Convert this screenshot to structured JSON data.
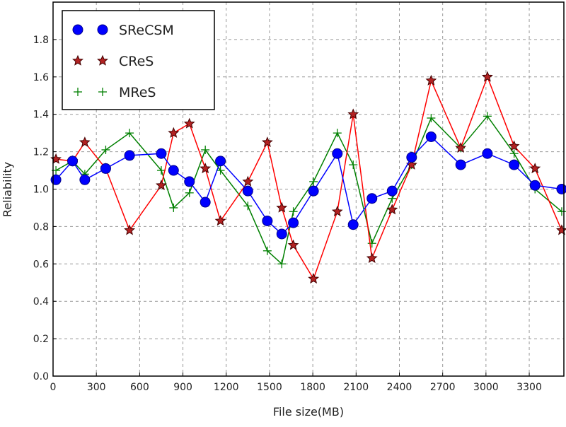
{
  "chart_data": {
    "type": "line",
    "title": "",
    "xlabel": "File size(MB)",
    "ylabel": "Reliability",
    "xlim": [
      0,
      3540
    ],
    "ylim": [
      0,
      2.0
    ],
    "xticks": [
      0,
      300,
      600,
      900,
      1200,
      1500,
      1800,
      2100,
      2400,
      2700,
      3000,
      3300
    ],
    "xtick_labels": [
      "0",
      "300",
      "600",
      "900",
      "1200",
      "1500",
      "1800",
      "2100",
      "2400",
      "2700",
      "3000",
      "3300"
    ],
    "yticks": [
      0,
      0.2,
      0.4,
      0.6,
      0.8,
      1.0,
      1.2,
      1.4,
      1.6,
      1.8
    ],
    "ytick_labels": [
      "0.0",
      "0.2",
      "0.4",
      "0.6",
      "0.8",
      "1.0",
      "1.2",
      "1.4",
      "1.6",
      "1.8"
    ],
    "grid": true,
    "legend_position": "top-left",
    "x": [
      20,
      135,
      220,
      365,
      530,
      750,
      835,
      945,
      1055,
      1160,
      1350,
      1485,
      1585,
      1665,
      1805,
      1970,
      2080,
      2210,
      2350,
      2485,
      2620,
      2825,
      3010,
      3195,
      3340,
      3525
    ],
    "series": [
      {
        "name": "SReCSM",
        "color": "#0000ff",
        "marker": "circle",
        "values": [
          1.05,
          1.15,
          1.05,
          1.11,
          1.18,
          1.19,
          1.1,
          1.04,
          0.93,
          1.15,
          0.99,
          0.83,
          0.76,
          0.82,
          0.99,
          1.19,
          0.81,
          0.95,
          0.99,
          1.17,
          1.28,
          1.13,
          1.19,
          1.13,
          1.02,
          1.0
        ]
      },
      {
        "name": "CReS",
        "color": "#ff0000",
        "marker": "star",
        "values": [
          1.16,
          1.15,
          1.25,
          1.11,
          0.78,
          1.02,
          1.3,
          1.35,
          1.11,
          0.83,
          1.04,
          1.25,
          0.9,
          0.7,
          0.52,
          0.88,
          1.4,
          0.63,
          0.89,
          1.13,
          1.58,
          1.22,
          1.6,
          1.23,
          1.11,
          0.78
        ]
      },
      {
        "name": "MReS",
        "color": "#008000",
        "marker": "plus",
        "values": [
          1.1,
          1.15,
          1.08,
          1.21,
          1.3,
          1.1,
          0.9,
          0.98,
          1.21,
          1.1,
          0.91,
          0.67,
          0.6,
          0.88,
          1.04,
          1.3,
          1.13,
          0.71,
          0.95,
          1.13,
          1.38,
          1.22,
          1.39,
          1.19,
          1.0,
          0.88
        ]
      }
    ]
  }
}
